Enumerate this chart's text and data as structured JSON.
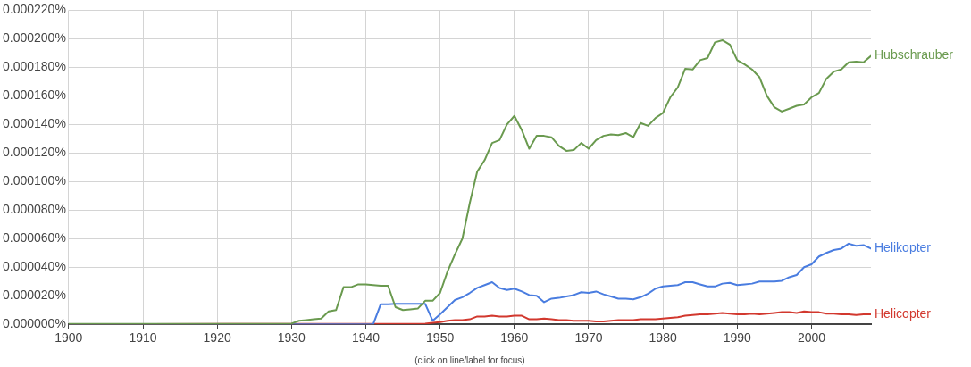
{
  "chart_data": {
    "type": "line",
    "xlim": [
      1900,
      2008
    ],
    "xticks": [
      1900,
      1910,
      1920,
      1930,
      1940,
      1950,
      1960,
      1970,
      1980,
      1990,
      2000
    ],
    "ylim": [
      0,
      0.00022
    ],
    "yticks": [
      {
        "value": 0,
        "label": "0.000000%"
      },
      {
        "value": 2e-05,
        "label": "0.000020%"
      },
      {
        "value": 4e-05,
        "label": "0.000040%"
      },
      {
        "value": 6e-05,
        "label": "0.000060%"
      },
      {
        "value": 8e-05,
        "label": "0.000080%"
      },
      {
        "value": 0.0001,
        "label": "0.000100%"
      },
      {
        "value": 0.00012,
        "label": "0.000120%"
      },
      {
        "value": 0.00014,
        "label": "0.000140%"
      },
      {
        "value": 0.00016,
        "label": "0.000160%"
      },
      {
        "value": 0.00018,
        "label": "0.000180%"
      },
      {
        "value": 0.0002,
        "label": "0.000200%"
      },
      {
        "value": 0.00022,
        "label": "0.000220%"
      }
    ],
    "grid": true,
    "legend": false,
    "marker": "none",
    "line_style": "solid",
    "annotations": [
      "(click on line/label for focus)"
    ],
    "series": [
      {
        "name": "Hubschrauber",
        "color": "#6a9a4f",
        "x": [
          1900,
          1910,
          1920,
          1930,
          1931,
          1932,
          1933,
          1934,
          1935,
          1936,
          1937,
          1938,
          1939,
          1940,
          1941,
          1942,
          1943,
          1944,
          1945,
          1946,
          1947,
          1948,
          1949,
          1950,
          1951,
          1952,
          1953,
          1954,
          1955,
          1956,
          1957,
          1958,
          1959,
          1960,
          1961,
          1962,
          1963,
          1964,
          1965,
          1966,
          1967,
          1968,
          1969,
          1970,
          1971,
          1972,
          1973,
          1974,
          1975,
          1976,
          1977,
          1978,
          1979,
          1980,
          1981,
          1982,
          1983,
          1984,
          1985,
          1986,
          1987,
          1988,
          1989,
          1990,
          1991,
          1992,
          1993,
          1994,
          1995,
          1996,
          1997,
          1998,
          1999,
          2000,
          2001,
          2002,
          2003,
          2004,
          2005,
          2006,
          2007,
          2008
        ],
        "values": [
          3e-07,
          3e-07,
          3e-07,
          5e-07,
          2.5e-06,
          3e-06,
          3.5e-06,
          4e-06,
          9e-06,
          1e-05,
          2.6e-05,
          2.6e-05,
          2.8e-05,
          2.8e-05,
          2.75e-05,
          2.7e-05,
          2.7e-05,
          1.2e-05,
          1e-05,
          1.05e-05,
          1.1e-05,
          1.65e-05,
          1.65e-05,
          2.2e-05,
          3.7e-05,
          4.9e-05,
          6e-05,
          8.5e-05,
          0.000107,
          0.000115,
          0.000127,
          0.000129,
          0.00014,
          0.000146,
          0.000136,
          0.000123,
          0.000132,
          0.000132,
          0.000131,
          0.000125,
          0.0001215,
          0.000122,
          0.000127,
          0.000123,
          0.000129,
          0.000132,
          0.000133,
          0.0001325,
          0.000134,
          0.000131,
          0.000141,
          0.000139,
          0.0001445,
          0.000148,
          0.000159,
          0.000166,
          0.000179,
          0.0001785,
          0.000185,
          0.0001865,
          0.0001975,
          0.000199,
          0.000196,
          0.000185,
          0.000182,
          0.0001785,
          0.000173,
          0.00016,
          0.000152,
          0.000149,
          0.000151,
          0.000153,
          0.000154,
          0.000159,
          0.000162,
          0.000172,
          0.000177,
          0.0001785,
          0.0001835,
          0.000184,
          0.0001835,
          0.000188
        ]
      },
      {
        "name": "Helikopter",
        "color": "#4a7de0",
        "x": [
          1900,
          1941,
          1942,
          1943,
          1944,
          1945,
          1946,
          1947,
          1948,
          1949,
          1950,
          1951,
          1952,
          1953,
          1954,
          1955,
          1956,
          1957,
          1958,
          1959,
          1960,
          1961,
          1962,
          1963,
          1964,
          1965,
          1966,
          1967,
          1968,
          1969,
          1970,
          1971,
          1972,
          1973,
          1974,
          1975,
          1976,
          1977,
          1978,
          1979,
          1980,
          1981,
          1982,
          1983,
          1984,
          1985,
          1986,
          1987,
          1988,
          1989,
          1990,
          1991,
          1992,
          1993,
          1994,
          1995,
          1996,
          1997,
          1998,
          1999,
          2000,
          2001,
          2002,
          2003,
          2004,
          2005,
          2006,
          2007,
          2008
        ],
        "values": [
          0,
          0,
          1.4e-05,
          1.4e-05,
          1.43e-05,
          1.43e-05,
          1.43e-05,
          1.43e-05,
          1.43e-05,
          2.5e-06,
          7e-06,
          1.2e-05,
          1.7e-05,
          1.9e-05,
          2.2e-05,
          2.55e-05,
          2.75e-05,
          2.95e-05,
          2.55e-05,
          2.4e-05,
          2.5e-05,
          2.3e-05,
          2.05e-05,
          2e-05,
          1.55e-05,
          1.8e-05,
          1.85e-05,
          1.95e-05,
          2.05e-05,
          2.25e-05,
          2.2e-05,
          2.3e-05,
          2.1e-05,
          1.95e-05,
          1.8e-05,
          1.8e-05,
          1.75e-05,
          1.9e-05,
          2.15e-05,
          2.5e-05,
          2.65e-05,
          2.7e-05,
          2.75e-05,
          2.95e-05,
          2.95e-05,
          2.8e-05,
          2.65e-05,
          2.65e-05,
          2.85e-05,
          2.9e-05,
          2.75e-05,
          2.8e-05,
          2.85e-05,
          3e-05,
          3e-05,
          3e-05,
          3.05e-05,
          3.3e-05,
          3.45e-05,
          4e-05,
          4.2e-05,
          4.75e-05,
          5e-05,
          5.2e-05,
          5.3e-05,
          5.65e-05,
          5.5e-05,
          5.55e-05,
          5.3e-05
        ]
      },
      {
        "name": "Helicopter",
        "color": "#d2382e",
        "x": [
          1900,
          1948,
          1949,
          1950,
          1951,
          1952,
          1953,
          1954,
          1955,
          1956,
          1957,
          1958,
          1959,
          1960,
          1961,
          1962,
          1963,
          1964,
          1965,
          1966,
          1967,
          1968,
          1969,
          1970,
          1971,
          1972,
          1973,
          1974,
          1975,
          1976,
          1977,
          1978,
          1979,
          1980,
          1981,
          1982,
          1983,
          1984,
          1985,
          1986,
          1987,
          1988,
          1989,
          1990,
          1991,
          1992,
          1993,
          1994,
          1995,
          1996,
          1997,
          1998,
          1999,
          2000,
          2001,
          2002,
          2003,
          2004,
          2005,
          2006,
          2007,
          2008
        ],
        "values": [
          0,
          5e-07,
          1e-06,
          1.5e-06,
          2.5e-06,
          3e-06,
          3e-06,
          3.5e-06,
          5.5e-06,
          5.5e-06,
          6e-06,
          5.5e-06,
          5.5e-06,
          6e-06,
          6e-06,
          3.5e-06,
          3.5e-06,
          4e-06,
          3.5e-06,
          3e-06,
          3e-06,
          2.5e-06,
          2.5e-06,
          2.5e-06,
          2e-06,
          2e-06,
          2.5e-06,
          3e-06,
          3e-06,
          3e-06,
          3.5e-06,
          3.5e-06,
          3.5e-06,
          4e-06,
          4.5e-06,
          5e-06,
          6e-06,
          6.5e-06,
          7e-06,
          7e-06,
          7.5e-06,
          8e-06,
          7.5e-06,
          7e-06,
          7e-06,
          7.5e-06,
          7e-06,
          7.5e-06,
          8e-06,
          8.5e-06,
          8.5e-06,
          8e-06,
          9e-06,
          8.5e-06,
          8.5e-06,
          7.5e-06,
          7.5e-06,
          7e-06,
          7e-06,
          6.5e-06,
          7e-06,
          7e-06
        ]
      }
    ]
  }
}
